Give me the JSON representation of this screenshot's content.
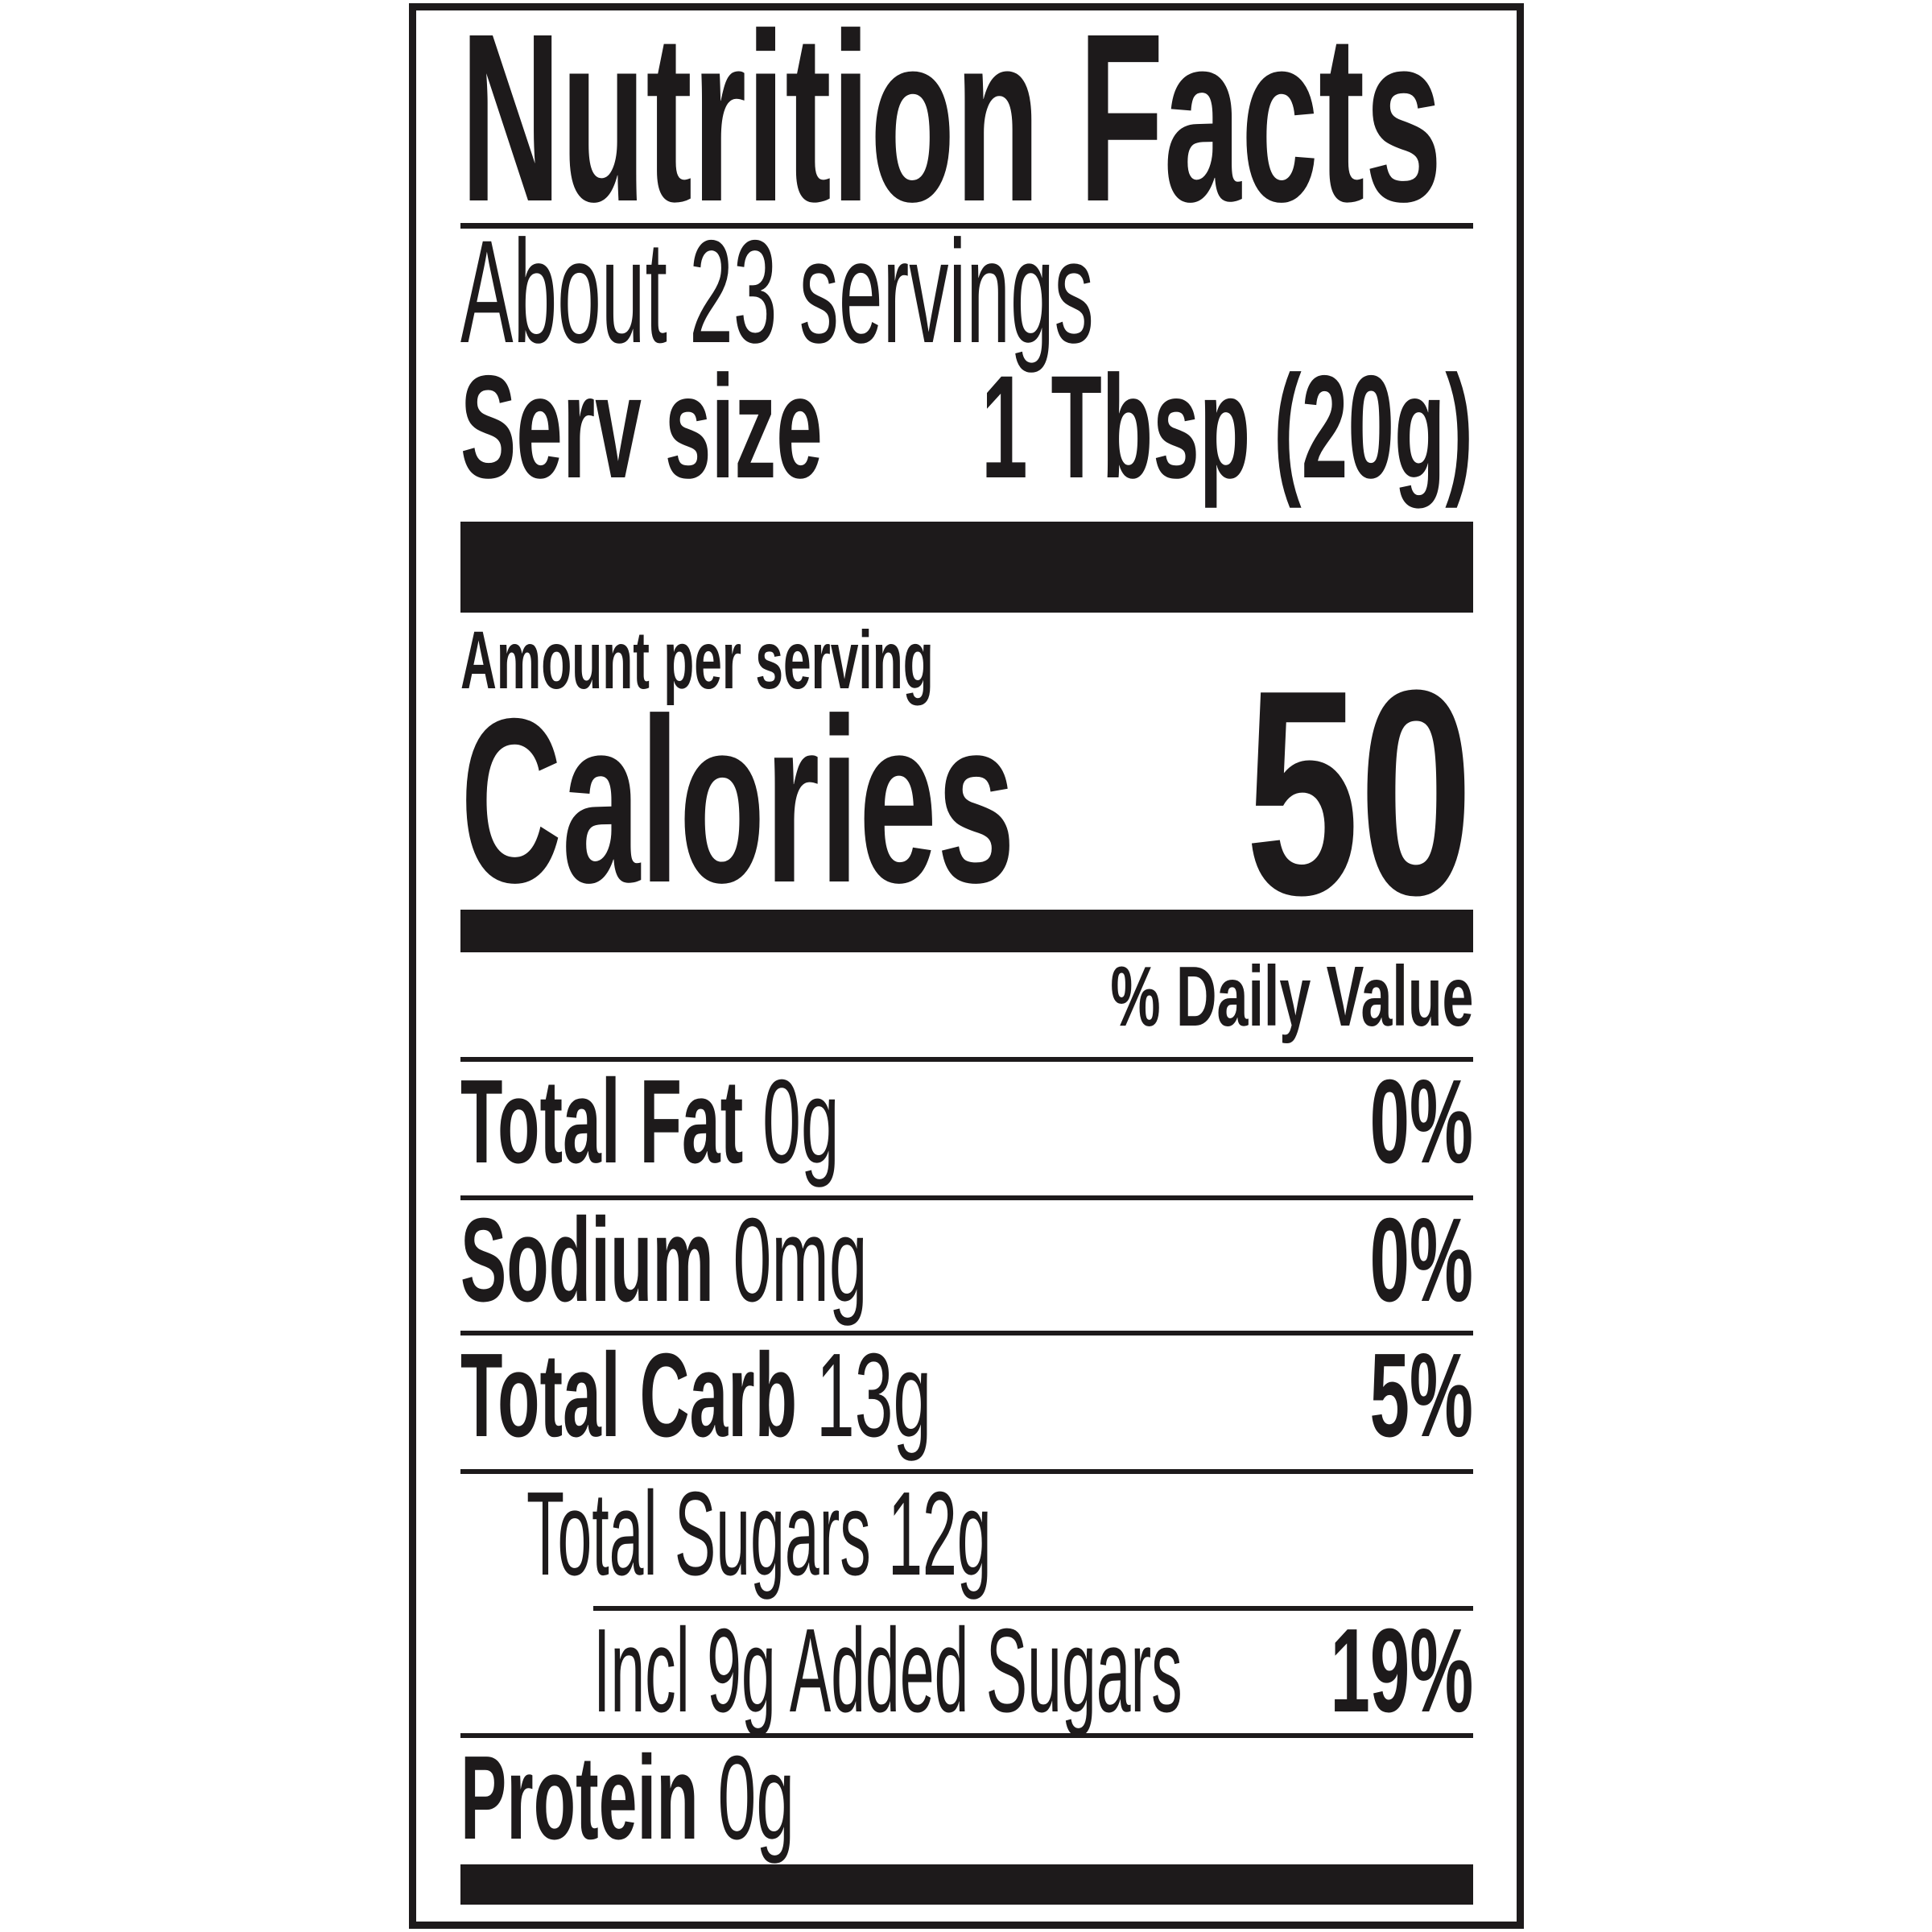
{
  "label": {
    "title": "Nutrition Facts",
    "servings_statement": "About 23 servings",
    "serving_size": {
      "label": "Serv size",
      "value": "1 Tbsp (20g)"
    },
    "amount_per_serving_label": "Amount per serving",
    "calories_label": "Calories",
    "calories_value": "50",
    "daily_value_header": "% Daily Value",
    "nutrients": [
      {
        "name": "Total Fat",
        "amount": "0g",
        "daily_value": "0%"
      },
      {
        "name": "Sodium",
        "amount": "0mg",
        "daily_value": "0%"
      },
      {
        "name": "Total Carb",
        "amount": "13g",
        "daily_value": "5%"
      },
      {
        "name": "Total Sugars",
        "amount": "12g",
        "daily_value": ""
      },
      {
        "name": "Incl 9g Added Sugars",
        "amount": "",
        "daily_value": "19%"
      },
      {
        "name": "Protein",
        "amount": "0g",
        "daily_value": ""
      }
    ],
    "colors": {
      "ink": "#1d1a1b",
      "background": "#ffffff"
    }
  }
}
